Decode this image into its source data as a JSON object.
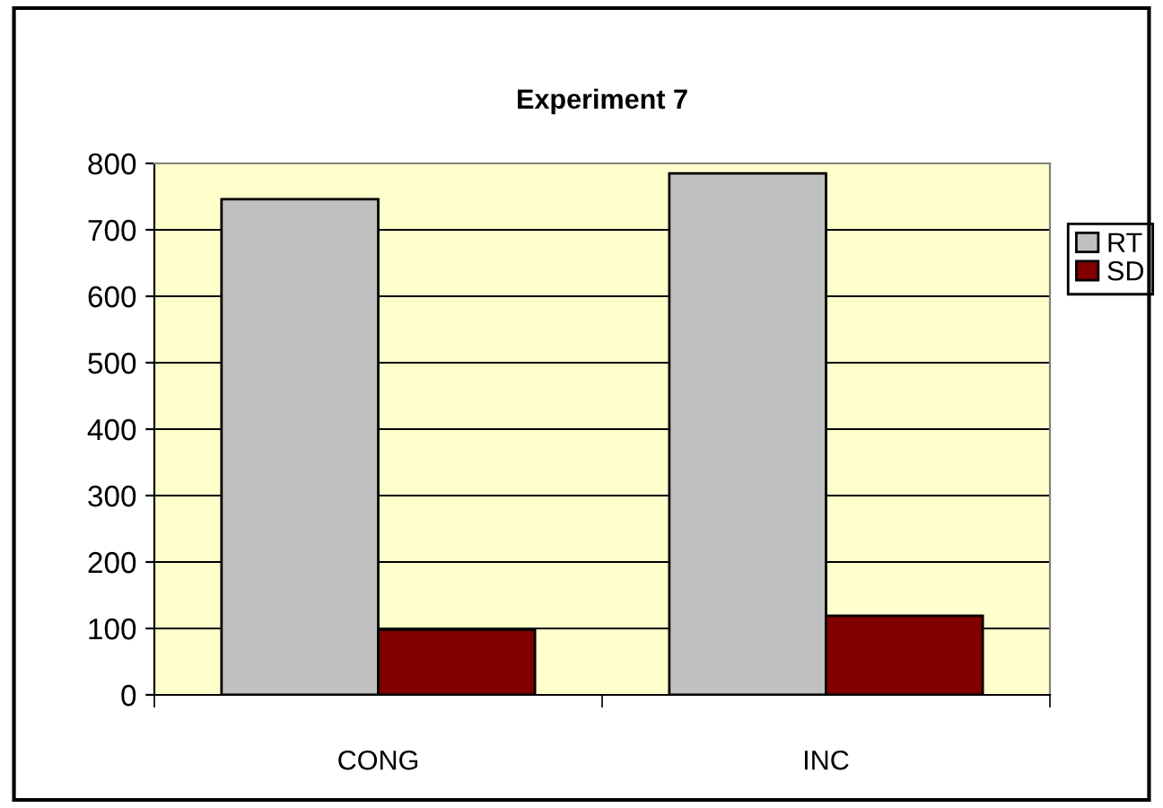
{
  "chart_data": {
    "type": "bar",
    "title": "Experiment 7",
    "categories": [
      "CONG",
      "INC"
    ],
    "series": [
      {
        "name": "RT",
        "color": "#c0c0c0",
        "values": [
          746,
          785
        ]
      },
      {
        "name": "SD",
        "color": "#800000",
        "values": [
          98,
          119
        ]
      }
    ],
    "ylim": [
      0,
      800
    ],
    "yticks": [
      0,
      100,
      200,
      300,
      400,
      500,
      600,
      700,
      800
    ],
    "grid": "y",
    "legend": "right"
  }
}
